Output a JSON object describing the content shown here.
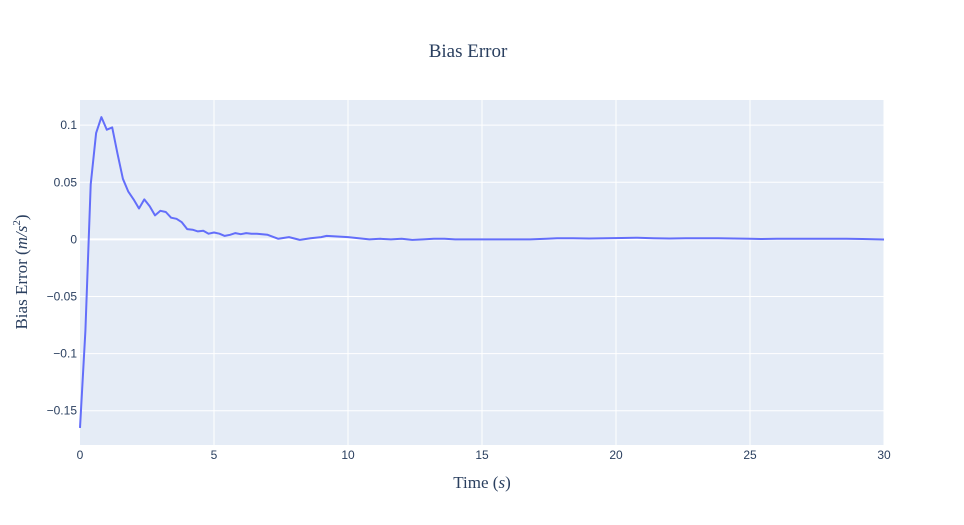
{
  "chart_data": {
    "type": "line",
    "title": "Bias Error",
    "xlabel": "Time (s)",
    "ylabel": "Bias Error (m/s²)",
    "xlabel_parts": {
      "main": "Time (",
      "unit": "s",
      "end": ")"
    },
    "ylabel_parts": {
      "main": "Bias Error (",
      "unit": "m/s",
      "sup": "2",
      "end": ")"
    },
    "xlim": [
      0,
      30
    ],
    "ylim": [
      -0.18,
      0.122
    ],
    "xticks": [
      0,
      5,
      10,
      15,
      20,
      25,
      30
    ],
    "xtick_labels": [
      "0",
      "5",
      "10",
      "15",
      "20",
      "25",
      "30"
    ],
    "yticks": [
      -0.15,
      -0.1,
      -0.05,
      0,
      0.05,
      0.1
    ],
    "ytick_labels": [
      "−0.15",
      "−0.1",
      "−0.05",
      "0",
      "0.05",
      "0.1"
    ],
    "grid": true,
    "colors": {
      "plot_bg": "#e5ecf6",
      "line": "#636efa",
      "text": "#2a3f5f"
    },
    "series": [
      {
        "x": [
          0,
          0.2,
          0.4,
          0.6,
          0.8,
          1.0,
          1.2,
          1.4,
          1.6,
          1.8,
          2.0,
          2.2,
          2.4,
          2.6,
          2.8,
          3.0,
          3.2,
          3.4,
          3.6,
          3.8,
          4.0,
          4.2,
          4.4,
          4.6,
          4.8,
          5.0,
          5.2,
          5.4,
          5.6,
          5.8,
          6.0,
          6.2,
          6.4,
          6.6,
          6.8,
          7.0,
          7.4,
          7.8,
          8.2,
          8.6,
          9.0,
          9.2,
          9.6,
          10.0,
          10.4,
          10.8,
          11.2,
          11.6,
          12.0,
          12.4,
          12.8,
          13.2,
          13.6,
          14.0,
          15.0,
          16.0,
          16.8,
          17.4,
          17.8,
          18.4,
          19.0,
          19.6,
          20.2,
          20.8,
          21.4,
          22.0,
          22.6,
          23.2,
          23.8,
          24.4,
          25.0,
          25.4,
          26.0,
          27.0,
          28.0,
          28.6,
          29.2,
          30.0
        ],
        "y": [
          -0.165,
          -0.08,
          0.048,
          0.093,
          0.107,
          0.096,
          0.098,
          0.075,
          0.053,
          0.042,
          0.035,
          0.027,
          0.035,
          0.029,
          0.021,
          0.025,
          0.024,
          0.019,
          0.018,
          0.015,
          0.009,
          0.0085,
          0.007,
          0.0075,
          0.005,
          0.006,
          0.005,
          0.003,
          0.004,
          0.0055,
          0.0045,
          0.0055,
          0.005,
          0.005,
          0.0045,
          0.004,
          0.0005,
          0.002,
          -0.0005,
          0.001,
          0.002,
          0.003,
          0.0025,
          0.002,
          0.001,
          0.0,
          0.0005,
          0.0,
          0.0005,
          -0.0005,
          0.0,
          0.0005,
          0.0005,
          0.0,
          0.0,
          0.0,
          0.0,
          0.0005,
          0.001,
          0.001,
          0.0008,
          0.001,
          0.0012,
          0.0015,
          0.001,
          0.0008,
          0.001,
          0.001,
          0.001,
          0.0008,
          0.0005,
          0.0003,
          0.0005,
          0.0005,
          0.0005,
          0.0005,
          0.0003,
          -0.0001
        ]
      }
    ]
  }
}
